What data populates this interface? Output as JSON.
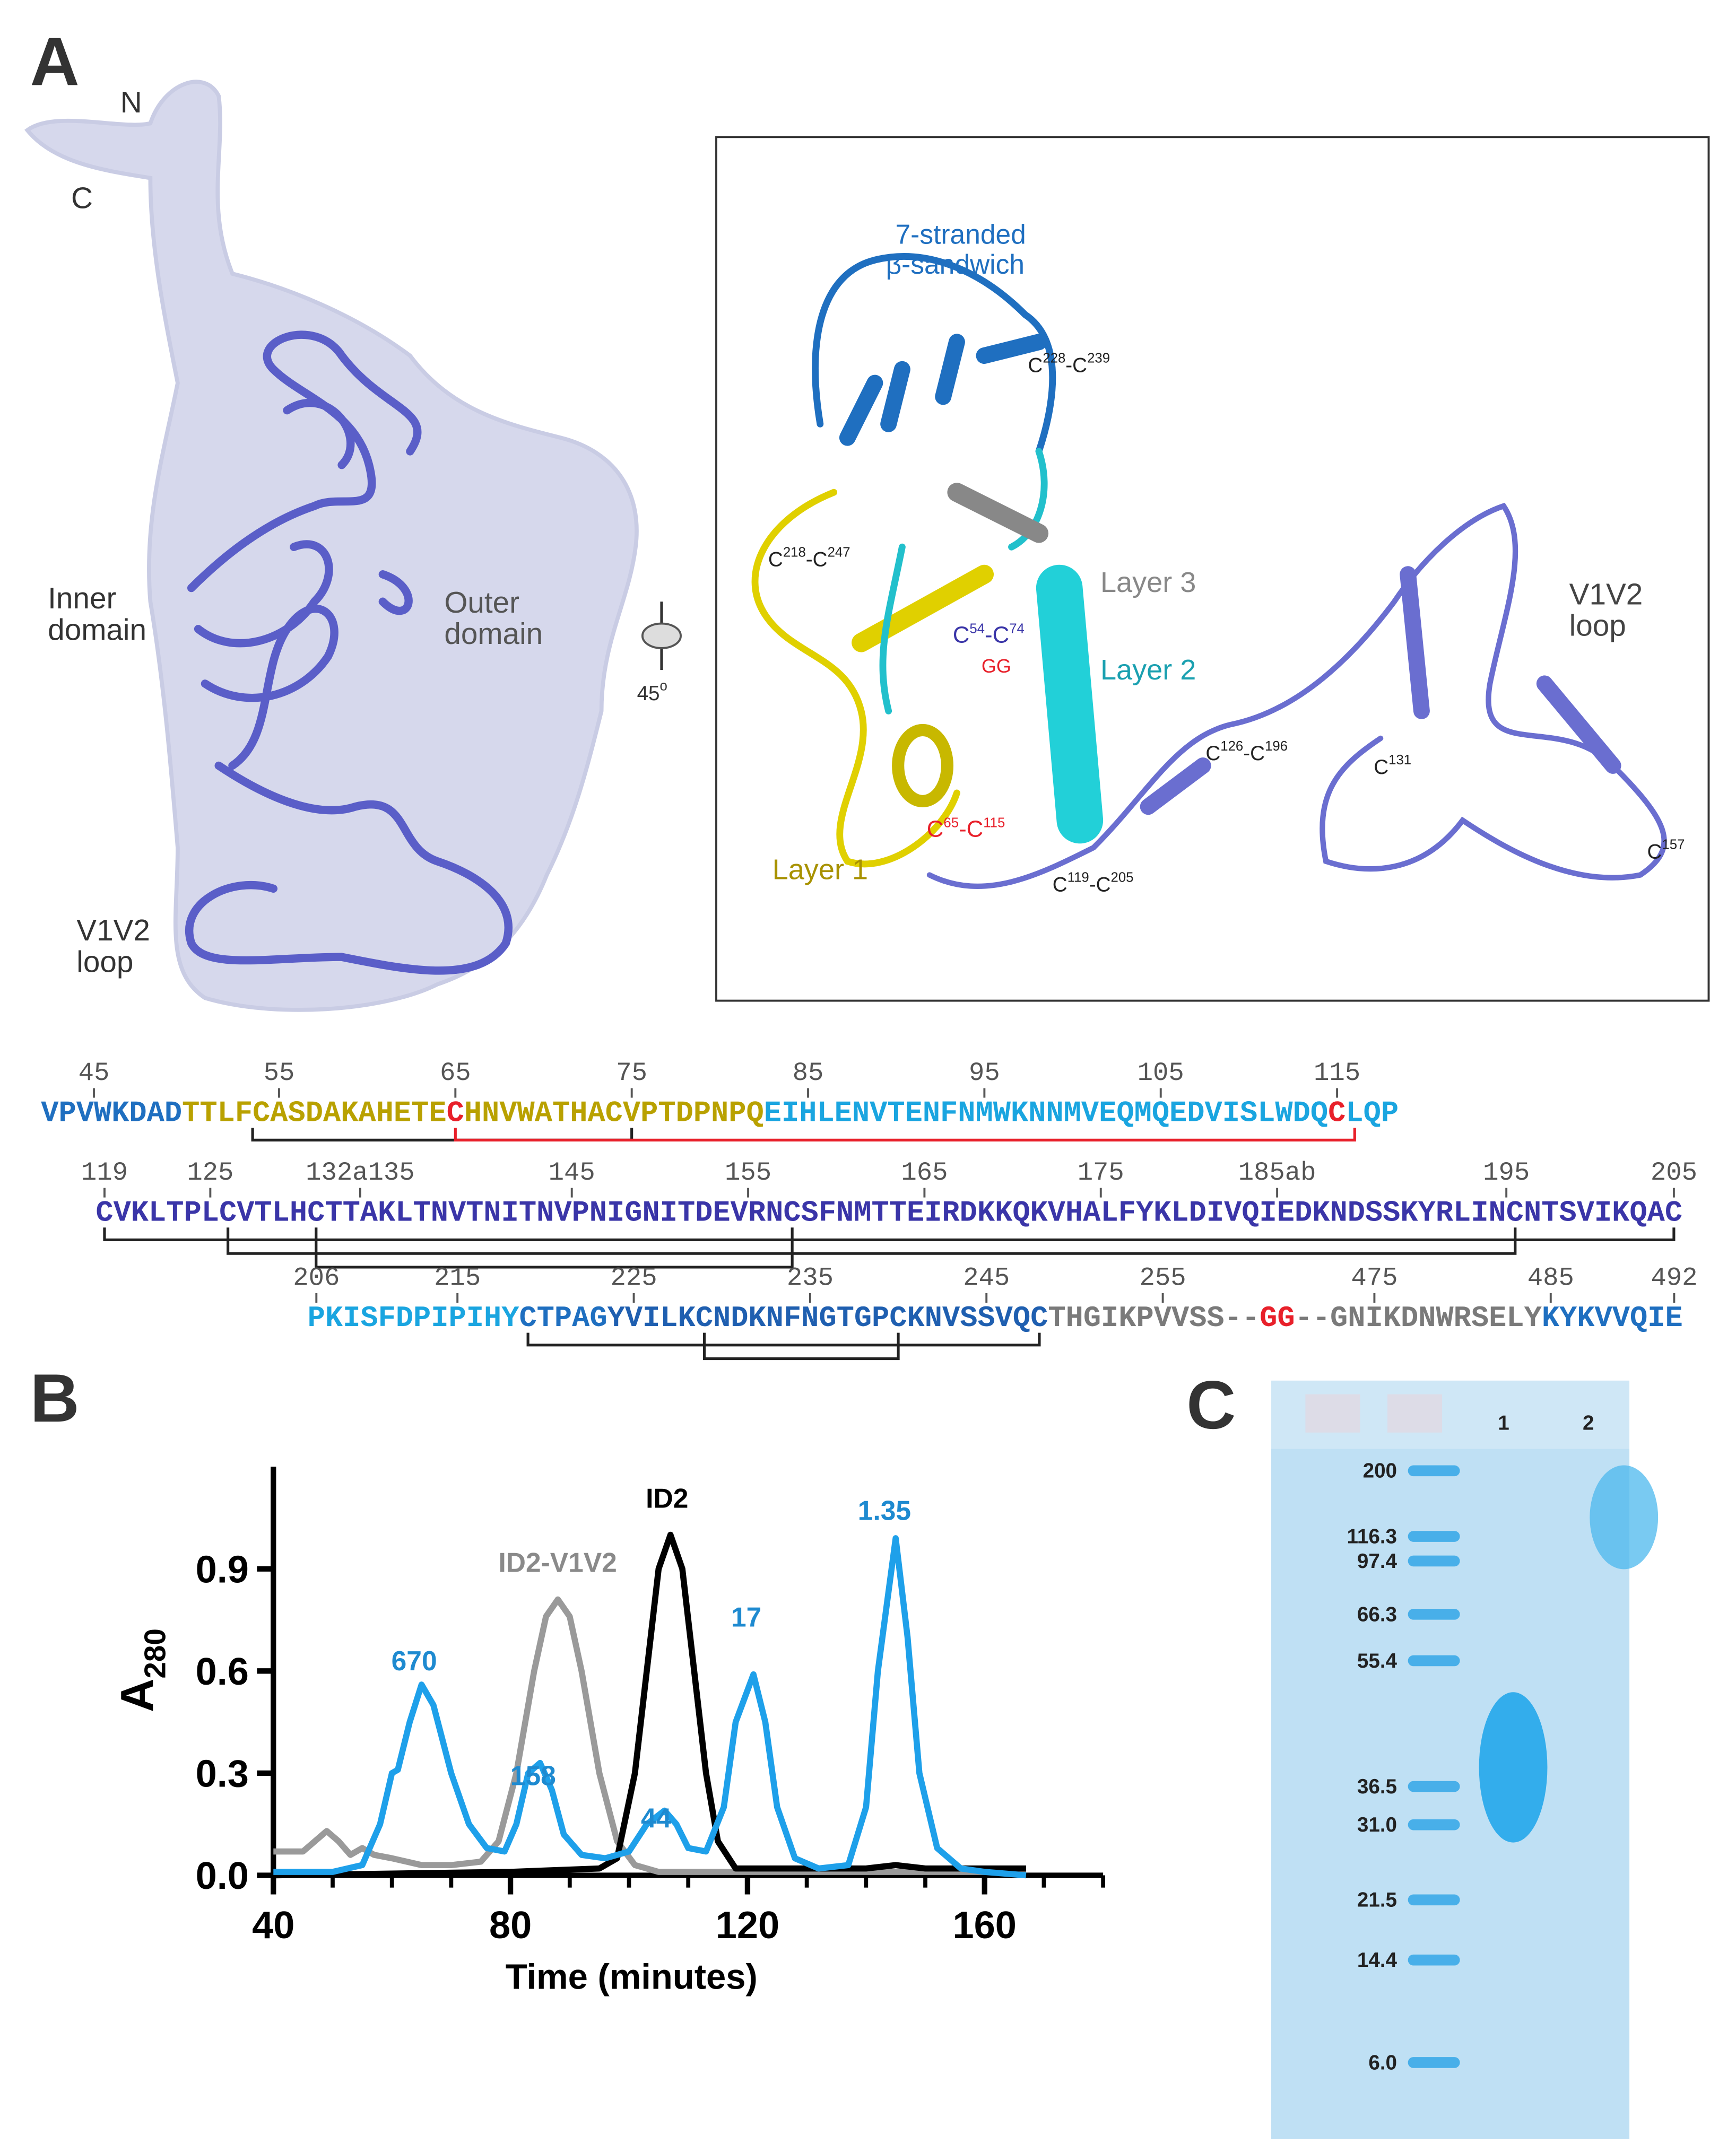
{
  "panel_labels": {
    "a": "A",
    "b": "B",
    "c": "C"
  },
  "panel_a": {
    "overview": {
      "n_term": "N",
      "c_term": "C",
      "inner": [
        "Inner",
        "domain"
      ],
      "outer": [
        "Outer",
        "domain"
      ],
      "v1v2": [
        "V1V2",
        "loop"
      ],
      "rotation": [
        "45",
        "o"
      ]
    },
    "inset": {
      "sandwich": [
        "7-stranded",
        "β-sandwich"
      ],
      "layer3": "Layer 3",
      "layer2": "Layer 2",
      "layer1": "Layer 1",
      "v1v2": [
        "V1V2",
        "loop"
      ],
      "gg": "GG",
      "disulfides": [
        [
          {
            "t": "C"
          },
          {
            "sup": "228"
          },
          {
            "t": "-C"
          },
          {
            "sup": "239"
          }
        ],
        [
          {
            "t": "C"
          },
          {
            "sup": "218"
          },
          {
            "t": "-C"
          },
          {
            "sup": "247"
          }
        ],
        [
          {
            "t": "C"
          },
          {
            "sup": "54"
          },
          {
            "t": "-C"
          },
          {
            "sup": "74"
          }
        ],
        [
          {
            "t": "C"
          },
          {
            "sup": "65"
          },
          {
            "t": "-C"
          },
          {
            "sup": "115"
          }
        ],
        [
          {
            "t": "C"
          },
          {
            "sup": "126"
          },
          {
            "t": "-C"
          },
          {
            "sup": "196"
          }
        ],
        [
          {
            "t": "C"
          },
          {
            "sup": "131"
          }
        ],
        [
          {
            "t": "C"
          },
          {
            "sup": "119"
          },
          {
            "t": "-C"
          },
          {
            "sup": "205"
          }
        ],
        [
          {
            "t": "C"
          },
          {
            "sup": "157"
          }
        ]
      ]
    },
    "sequence": [
      {
        "numbers": [
          "45",
          "55",
          "65",
          "75",
          "85",
          "95",
          "105",
          "115"
        ],
        "segments": [
          {
            "text": "VPVWKDAD",
            "color": "#1f6fc0"
          },
          {
            "text": "TTLFCASDAKAHETE",
            "color": "#b9a100"
          },
          {
            "text": "C",
            "color": "#e8202a"
          },
          {
            "text": "HNVWATHACVPTDPNPQ",
            "color": "#b9a100"
          },
          {
            "text": "EIHLENVTENFNMWKNNMVEQMQEDVISLWDQ",
            "color": "#1aa5e0"
          },
          {
            "text": "C",
            "color": "#e8202a"
          },
          {
            "text": "LQP",
            "color": "#1aa5e0"
          }
        ]
      },
      {
        "numbers": [
          "119",
          "125",
          "132a135",
          "145",
          "155",
          "165",
          "175",
          "185ab",
          "195",
          "205"
        ],
        "segments": [
          {
            "text": "CVKLTPLCVTLHCTTAKLTNVTNITNVPNIGNITDEVRNCSFNMTTEIRDKKQKVHALFYKLDIVQIEDKNDSSKYRLINCNTSVIKQAC",
            "color": "#3a35a8"
          }
        ]
      },
      {
        "numbers": [
          "206",
          "215",
          "225",
          "235",
          "245",
          "255",
          "475",
          "485",
          "492"
        ],
        "segments": [
          {
            "text": "PKISFDPIPIHY",
            "color": "#1aa5e0"
          },
          {
            "text": "CTPAG",
            "color": "#1f6fc0"
          },
          {
            "text": "YVILKCNDKNFNGTGPCKNVSSVQC",
            "color": "#1f5fb0"
          },
          {
            "text": "THGIKPVVSS--",
            "color": "#7a7a7a"
          },
          {
            "text": "GG",
            "color": "#e8202a"
          },
          {
            "text": "--GNIKDNWRSELY",
            "color": "#7a7a7a"
          },
          {
            "text": "KYKVVQIE",
            "color": "#1f6fc0"
          }
        ]
      }
    ]
  },
  "chart_data": {
    "type": "line",
    "xlabel": "Time (minutes)",
    "ylabel": [
      "A",
      "280"
    ],
    "xlim": [
      40,
      180
    ],
    "ylim": [
      0,
      1.2
    ],
    "xticks": [
      40,
      80,
      120,
      160
    ],
    "xticks_minor": [
      50,
      60,
      70,
      90,
      100,
      110,
      130,
      140,
      150,
      170,
      180
    ],
    "yticks": [
      {
        "value": 0,
        "label": "0.0"
      },
      {
        "value": 0.3,
        "label": "0.3"
      },
      {
        "value": 0.6,
        "label": "0.6"
      },
      {
        "value": 0.9,
        "label": "0.9"
      }
    ],
    "series": [
      {
        "name": "ID2-V1V2",
        "color": "#9a9a9a",
        "x": [
          40,
          45,
          47,
          49,
          51,
          53,
          55,
          57,
          60,
          65,
          70,
          75,
          78,
          81,
          84,
          86,
          88,
          90,
          92,
          95,
          98,
          101,
          105,
          120,
          167
        ],
        "values": [
          0.07,
          0.07,
          0.1,
          0.13,
          0.1,
          0.06,
          0.08,
          0.06,
          0.05,
          0.03,
          0.03,
          0.04,
          0.1,
          0.3,
          0.6,
          0.76,
          0.81,
          0.76,
          0.6,
          0.3,
          0.1,
          0.03,
          0.01,
          0.01,
          0.01
        ]
      },
      {
        "name": "ID2",
        "color": "#000000",
        "x": [
          40,
          80,
          95,
          98,
          101,
          103,
          105,
          107,
          109,
          111,
          113,
          115,
          118,
          140,
          145,
          150,
          167
        ],
        "values": [
          0.0,
          0.01,
          0.02,
          0.05,
          0.3,
          0.6,
          0.9,
          1.0,
          0.9,
          0.6,
          0.3,
          0.1,
          0.02,
          0.02,
          0.03,
          0.02,
          0.02
        ]
      },
      {
        "color": "#1ea0ea",
        "x": [
          40,
          50,
          55,
          58,
          60,
          61,
          63,
          65,
          67,
          70,
          73,
          76,
          79,
          81,
          83,
          85,
          87,
          89,
          92,
          96,
          100,
          103,
          106,
          108,
          110,
          113,
          116,
          118,
          121,
          123,
          125,
          128,
          132,
          137,
          140,
          142,
          145,
          147,
          149,
          152,
          156,
          160,
          167
        ],
        "values": [
          0.01,
          0.01,
          0.03,
          0.15,
          0.3,
          0.31,
          0.45,
          0.56,
          0.5,
          0.3,
          0.15,
          0.08,
          0.07,
          0.15,
          0.3,
          0.33,
          0.25,
          0.12,
          0.06,
          0.05,
          0.07,
          0.15,
          0.19,
          0.15,
          0.08,
          0.07,
          0.2,
          0.45,
          0.59,
          0.45,
          0.2,
          0.05,
          0.02,
          0.03,
          0.2,
          0.6,
          0.99,
          0.7,
          0.3,
          0.08,
          0.02,
          0.01,
          0.0
        ]
      }
    ],
    "annotations": [
      "670",
      "158",
      "44",
      "17",
      "1.35"
    ],
    "annotation_color": "#1e8ad0"
  },
  "panel_c": {
    "lanes": [
      "1",
      "2"
    ],
    "markers": [
      "200",
      "116.3",
      "97.4",
      "66.3",
      "55.4",
      "36.5",
      "31.0",
      "21.5",
      "14.4",
      "6.0"
    ]
  }
}
